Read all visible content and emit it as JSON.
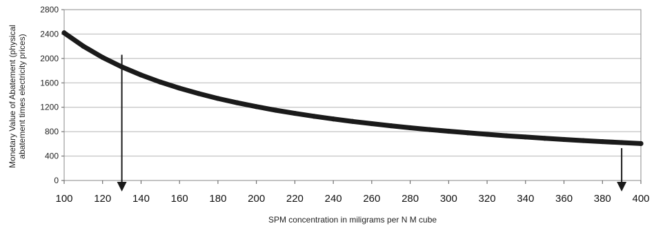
{
  "chart_data": {
    "type": "line",
    "title": "",
    "xlabel": "SPM concentration in miligrams per N M cube",
    "ylabel_lines": [
      "Monetary Value of Abatement (physical",
      "abatement times electricity prices)"
    ],
    "xlim": [
      100,
      400
    ],
    "ylim": [
      0,
      2800
    ],
    "x_ticks": [
      100,
      120,
      140,
      160,
      180,
      200,
      220,
      240,
      260,
      280,
      300,
      320,
      340,
      360,
      380,
      400
    ],
    "y_ticks": [
      0,
      400,
      800,
      1200,
      1600,
      2000,
      2400,
      2800
    ],
    "grid": "horizontal",
    "series": [
      {
        "color": "#1a1a1a",
        "x": [
          100,
          110,
          120,
          130,
          140,
          150,
          160,
          170,
          180,
          190,
          200,
          210,
          220,
          230,
          240,
          250,
          260,
          270,
          280,
          290,
          300,
          310,
          320,
          330,
          340,
          350,
          360,
          370,
          380,
          390,
          400
        ],
        "y": [
          2420,
          2200,
          2017,
          1862,
          1729,
          1613,
          1513,
          1424,
          1344,
          1274,
          1210,
          1152,
          1100,
          1052,
          1008,
          968,
          931,
          896,
          864,
          834,
          807,
          781,
          756,
          733,
          712,
          691,
          672,
          654,
          637,
          621,
          605
        ]
      }
    ],
    "annotations": [
      {
        "type": "arrow-down",
        "x": 130,
        "y_from": 2060,
        "y_to": -180,
        "color": "#1a1a1a"
      },
      {
        "type": "arrow-down",
        "x": 390,
        "y_from": 530,
        "y_to": -180,
        "color": "#1a1a1a"
      }
    ]
  }
}
